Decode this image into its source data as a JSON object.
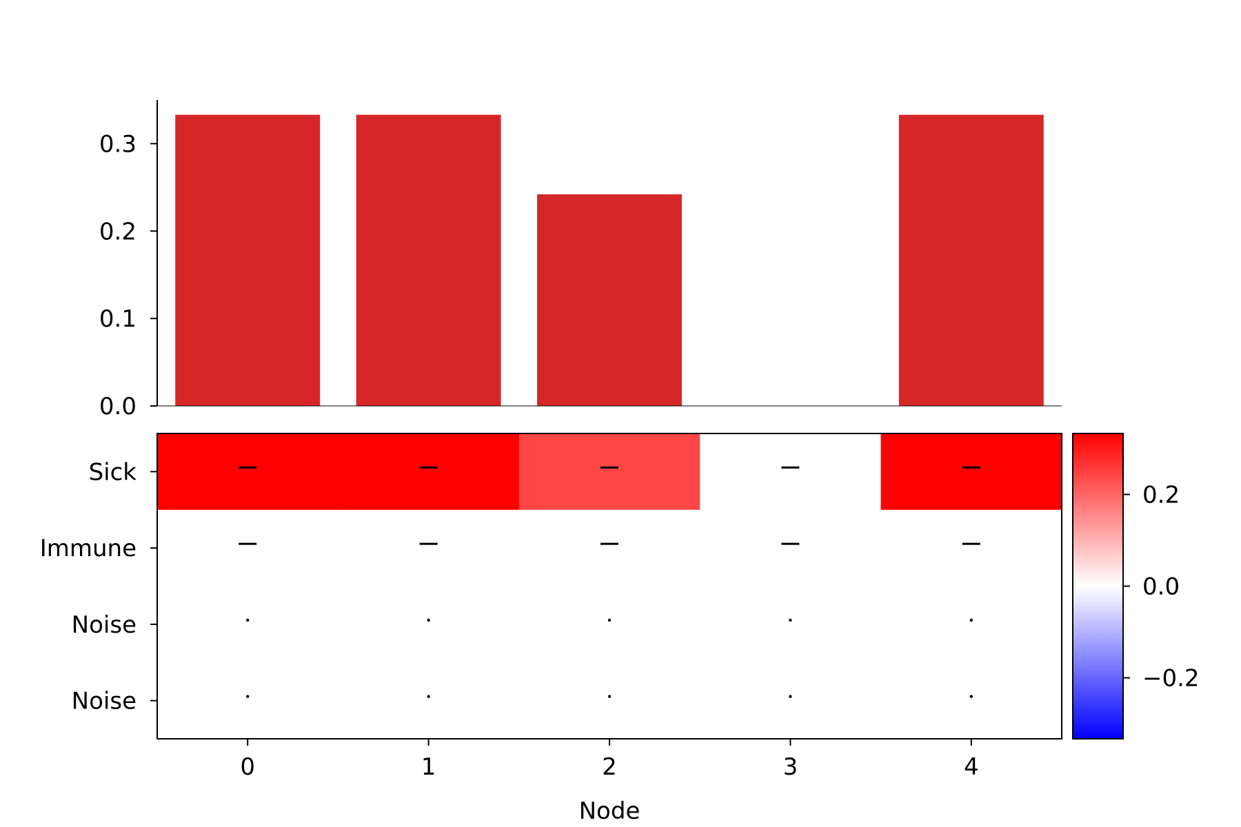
{
  "chart_data": [
    {
      "type": "bar",
      "categories": [
        "0",
        "1",
        "2",
        "3",
        "4"
      ],
      "values": [
        0.333,
        0.333,
        0.242,
        0.0,
        0.333
      ],
      "ylim": [
        0,
        0.35
      ],
      "yticks": [
        "0.0",
        "0.1",
        "0.2",
        "0.3"
      ],
      "bar_color": "#d62728",
      "title": "",
      "xlabel": "",
      "ylabel": ""
    },
    {
      "type": "heatmap",
      "x_categories": [
        "0",
        "1",
        "2",
        "3",
        "4"
      ],
      "y_categories": [
        "Sick",
        "Immune",
        "Noise",
        "Noise"
      ],
      "values": [
        [
          0.333,
          0.333,
          0.242,
          0.0,
          0.333
        ],
        [
          0.0,
          0.0,
          0.0,
          0.0,
          0.0
        ],
        [
          0.0,
          0.0,
          0.0,
          0.0,
          0.0
        ],
        [
          0.0,
          0.0,
          0.0,
          0.0,
          0.0
        ]
      ],
      "markers": [
        "–",
        "–",
        "·",
        "·"
      ],
      "xlabel": "Node",
      "colormap": "bwr",
      "vmin": -0.333,
      "vmax": 0.333,
      "colorbar_ticks": [
        {
          "value": 0.2,
          "label": "0.2"
        },
        {
          "value": 0.0,
          "label": "0.0"
        },
        {
          "value": -0.2,
          "label": "−0.2"
        }
      ]
    }
  ]
}
